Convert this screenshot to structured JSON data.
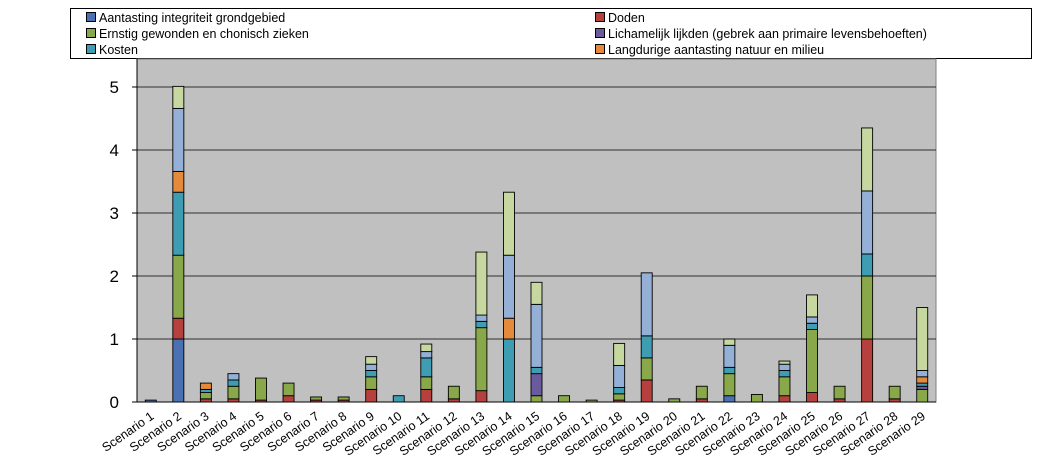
{
  "chart_data": {
    "type": "bar",
    "stacked": true,
    "title": "",
    "xlabel": "",
    "ylabel": "",
    "ylim": [
      0,
      5.5
    ],
    "yticks": [
      0,
      1,
      2,
      3,
      4,
      5
    ],
    "grid": true,
    "legend_position": "top",
    "plot_background": "#c0c0c0",
    "categories": [
      "Scenario 1",
      "Scenario 2",
      "Scenario 3",
      "Scenario 4",
      "Scenario 5",
      "Scenario 6",
      "Scenario 7",
      "Scenario 8",
      "Scenario 9",
      "Scenario 10",
      "Scenario 11",
      "Scenario 12",
      "Scenario 13",
      "Scenario 14",
      "Scenario 15",
      "Scenario 16",
      "Scenario 17",
      "Scenario 18",
      "Scenario 19",
      "Scenario 20",
      "Scenario 21",
      "Scenario 22",
      "Scenario 23",
      "Scenario 24",
      "Scenario 25",
      "Scenario 26",
      "Scenario 27",
      "Scenario 28",
      "Scenario 29"
    ],
    "series": [
      {
        "name": "Aantasting integriteit grondgebied",
        "color": "#4a72b2",
        "values": [
          0.03,
          1.0,
          0,
          0,
          0,
          0,
          0,
          0,
          0,
          0,
          0,
          0,
          0,
          0,
          0,
          0,
          0,
          0,
          0,
          0,
          0,
          0.1,
          0,
          0,
          0,
          0,
          0,
          0,
          0
        ]
      },
      {
        "name": "Doden",
        "color": "#b5403d",
        "values": [
          0,
          0.33,
          0.05,
          0.05,
          0.03,
          0.1,
          0.03,
          0.03,
          0.2,
          0,
          0.2,
          0.05,
          0.18,
          0,
          0,
          0,
          0,
          0.03,
          0.35,
          0,
          0.05,
          0,
          0,
          0.1,
          0.15,
          0.05,
          1.0,
          0.05,
          0
        ]
      },
      {
        "name": "Ernstig gewonden en chonisch zieken",
        "color": "#89a84a",
        "values": [
          0,
          1.0,
          0.1,
          0.2,
          0.35,
          0.2,
          0.05,
          0.05,
          0.2,
          0,
          0.2,
          0.2,
          1.0,
          0,
          0.1,
          0.1,
          0.03,
          0.1,
          0.35,
          0.05,
          0.2,
          0.35,
          0.12,
          0.3,
          1.0,
          0.2,
          1.0,
          0.2,
          0.2
        ]
      },
      {
        "name": "Lichamelijk lijkden (gebrek aan primaire levensbehoeften)",
        "color": "#6a5a9e",
        "values": [
          0,
          0,
          0,
          0,
          0,
          0,
          0,
          0,
          0,
          0,
          0,
          0,
          0,
          0,
          0.35,
          0,
          0,
          0,
          0,
          0,
          0,
          0,
          0,
          0,
          0,
          0,
          0,
          0,
          0.05
        ]
      },
      {
        "name": "Kosten",
        "color": "#3f9db3",
        "values": [
          0,
          1.0,
          0.05,
          0.1,
          0,
          0,
          0,
          0,
          0.1,
          0.1,
          0.3,
          0,
          0.1,
          1.0,
          0.1,
          0,
          0,
          0.1,
          0.35,
          0,
          0,
          0.1,
          0,
          0.1,
          0.1,
          0,
          0.35,
          0,
          0.05
        ]
      },
      {
        "name": "Langdurige aantasting natuur en milieu",
        "color": "#e58a3a",
        "values": [
          0,
          0.33,
          0.1,
          0,
          0,
          0,
          0,
          0,
          0,
          0,
          0,
          0,
          0,
          0.33,
          0,
          0,
          0,
          0,
          0,
          0,
          0,
          0,
          0,
          0,
          0,
          0,
          0,
          0,
          0.1
        ]
      },
      {
        "name": "",
        "color": "#94b0d6",
        "values": [
          0,
          1.0,
          0,
          0.1,
          0,
          0,
          0,
          0,
          0.1,
          0,
          0.1,
          0,
          0.1,
          1.0,
          1.0,
          0,
          0,
          0.35,
          1.0,
          0,
          0,
          0.35,
          0,
          0.1,
          0.1,
          0,
          1.0,
          0,
          0.1
        ]
      },
      {
        "name": "",
        "color": "#c6d8a0",
        "values": [
          0,
          0.35,
          0,
          0,
          0,
          0,
          0,
          0,
          0.12,
          0,
          0.12,
          0,
          1.0,
          1.0,
          0.35,
          0,
          0,
          0.35,
          0,
          0,
          0,
          0.1,
          0,
          0.05,
          0.35,
          0,
          1.0,
          0,
          1.0
        ]
      }
    ]
  }
}
